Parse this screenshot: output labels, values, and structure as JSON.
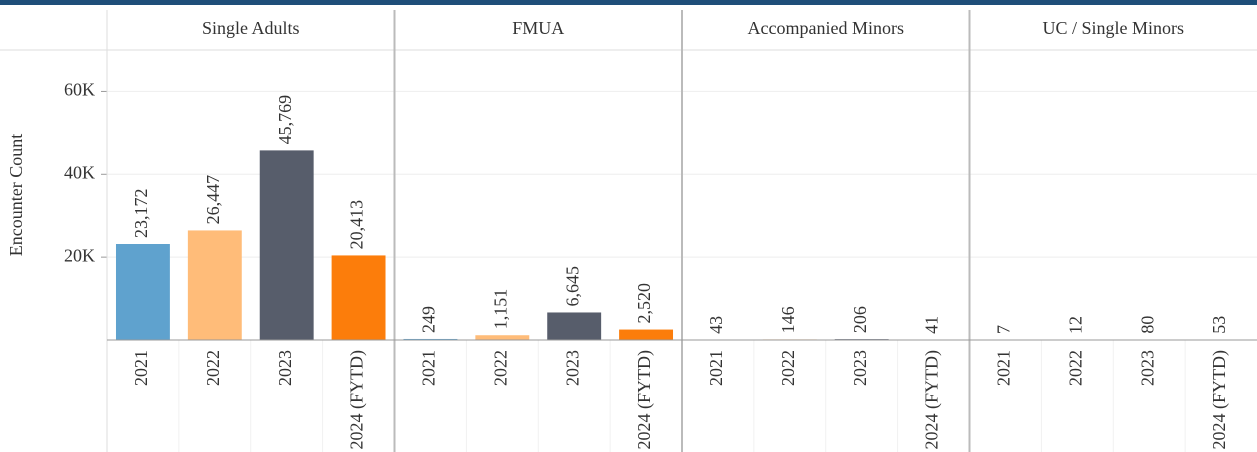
{
  "chart_data": {
    "type": "bar",
    "y_label": "Encounter Count",
    "categories": [
      "2021",
      "2022",
      "2023",
      "2024 (FYTD)"
    ],
    "colors": [
      "#5fa2ce",
      "#ffbc79",
      "#575d6b",
      "#fc7d0b"
    ],
    "ylim": [
      0,
      70000
    ],
    "yticks": [
      {
        "value": 20000,
        "label": "20K"
      },
      {
        "value": 40000,
        "label": "40K"
      },
      {
        "value": 60000,
        "label": "60K"
      }
    ],
    "grid": true,
    "panels": [
      {
        "title": "Single Adults",
        "values": [
          23172,
          26447,
          45769,
          20413
        ],
        "value_labels": [
          "23,172",
          "26,447",
          "45,769",
          "20,413"
        ]
      },
      {
        "title": "FMUA",
        "values": [
          249,
          1151,
          6645,
          2520
        ],
        "value_labels": [
          "249",
          "1,151",
          "6,645",
          "2,520"
        ]
      },
      {
        "title": "Accompanied Minors",
        "values": [
          43,
          146,
          206,
          41
        ],
        "value_labels": [
          "43",
          "146",
          "206",
          "41"
        ]
      },
      {
        "title": "UC / Single Minors",
        "values": [
          7,
          12,
          80,
          53
        ],
        "value_labels": [
          "7",
          "12",
          "80",
          "53"
        ]
      }
    ]
  }
}
